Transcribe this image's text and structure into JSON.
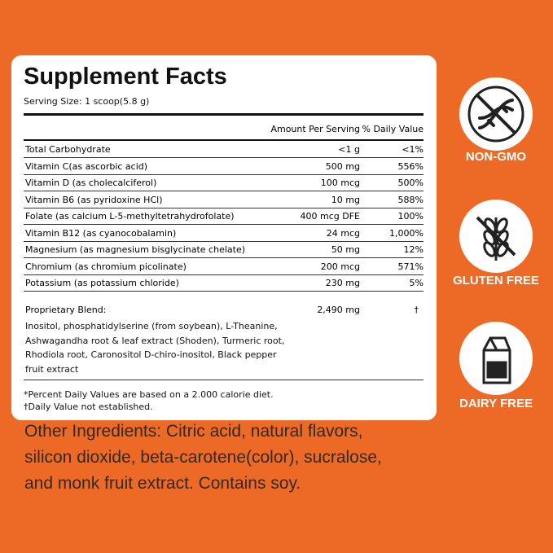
{
  "title": "Supplement Facts",
  "serving_size": "Serving Size: 1 scoop(5.8 g)",
  "table": {
    "header": [
      "Amount Per Serving",
      "% Daily Value"
    ],
    "rows": [
      [
        "Total Carbohydrate",
        "<1 g",
        "<1%"
      ],
      [
        "Vitamin C(as ascorbic acid)",
        "500 mg",
        "556%"
      ],
      [
        "Vitamin D (as cholecalciferol)",
        "100 mcg",
        "500%"
      ],
      [
        "Vitamin B6 (as pyridoxine HCl)",
        "10 mg",
        "588%"
      ],
      [
        "Folate (as calcium L-5-methyltetrahydrofolate)",
        "400 mcg DFE",
        "100%"
      ],
      [
        "Vitamin B12 (as cyanocobalamin)",
        "24 mcg",
        "1,000%"
      ],
      [
        "Magnesium (as magnesium bisglycinate chelate)",
        "50 mg",
        "12%"
      ],
      [
        "Chromium (as chromium picolinate)",
        "200 mcg",
        "571%"
      ],
      [
        "Potassium (as potassium chloride)",
        "230 mg",
        "5%"
      ]
    ],
    "blend": {
      "name": "Proprietary Blend:",
      "amount": "2,490 mg",
      "dv": "†",
      "ingredients": [
        "Inositol, phosphatidylserine (from soybean), L-Theanine,",
        "Ashwagandha root & leaf extract (Shoden), Turmeric root,",
        "Rhodiola root, Caronositol D-chiro-inositol, Black pepper",
        "fruit extract"
      ]
    }
  },
  "footnotes": [
    "*Percent Daily Values are based on a 2.000 calorie diet.",
    "†Daily Value not established."
  ],
  "other_ingredients": [
    "Other Ingredients: Citric acid, natural flavors,",
    "silicon dioxide, beta-carotene(color), sucralose,",
    "and monk fruit extract. Contains soy."
  ],
  "badges": [
    "NON-GMO",
    "GLUTEN FREE",
    "DAIRY FREE"
  ]
}
